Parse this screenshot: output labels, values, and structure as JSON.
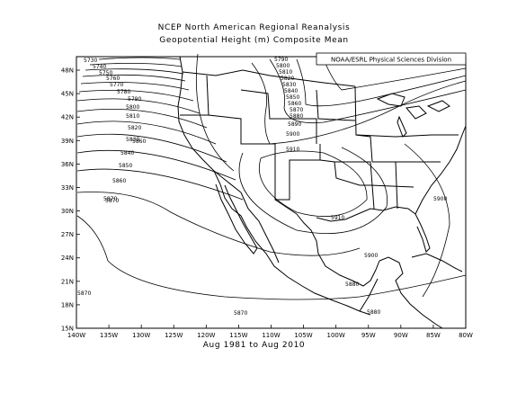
{
  "title_line1": "NCEP North American Regional Reanalysis",
  "title_line2": "Geopotential Height (m) Composite Mean",
  "subtitle": "Aug 1981 to Aug 2010",
  "credit": "NOAA/ESRL Physical Sciences Division",
  "lat_labels": [
    "48N",
    "45N",
    "42N",
    "39N",
    "36N",
    "33N",
    "30N",
    "27N",
    "24N",
    "21N",
    "18N",
    "15N"
  ],
  "lon_labels": [
    "140W",
    "135W",
    "130W",
    "125W",
    "120W",
    "115W",
    "110W",
    "105W",
    "100W",
    "95W",
    "90W",
    "85W",
    "80W"
  ],
  "contours_north": [
    "5730",
    "5740",
    "5750",
    "5760",
    "5770",
    "5780",
    "5790",
    "5800",
    "5810",
    "5820",
    "5830",
    "5840",
    "5850",
    "5860",
    "5870"
  ],
  "contours_east": [
    "5790",
    "5800",
    "5810",
    "5820",
    "5830",
    "5840",
    "5850",
    "5860",
    "5870",
    "5880",
    "5890"
  ],
  "contour_labels_other": [
    "5900",
    "5910",
    "5910",
    "5900",
    "5900",
    "5880",
    "5880",
    "5870",
    "5870",
    "5870",
    "5860"
  ]
}
